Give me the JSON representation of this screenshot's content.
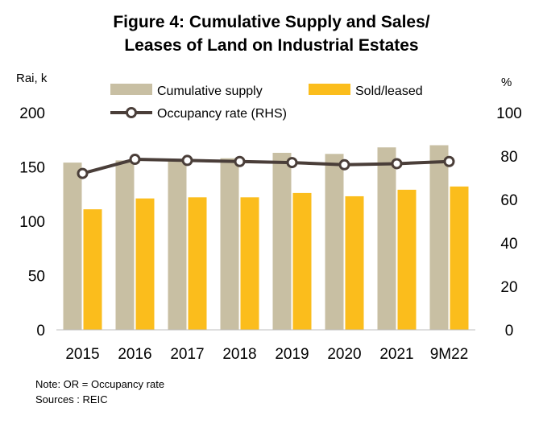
{
  "chart_data": {
    "type": "bar",
    "title_lines": [
      "Figure 4: Cumulative Supply and Sales/",
      "Leases of Land on Industrial Estates"
    ],
    "y_left_unit": "Rai, k",
    "y_right_unit": "%",
    "categories": [
      "2015",
      "2016",
      "2017",
      "2018",
      "2019",
      "2020",
      "2021",
      "9M22"
    ],
    "series": [
      {
        "name": "Cumulative supply",
        "type": "bar",
        "axis": "left",
        "color": "#c8bfa3",
        "values": [
          154,
          156,
          157,
          158,
          163,
          162,
          168,
          170
        ]
      },
      {
        "name": "Sold/leased",
        "type": "bar",
        "axis": "left",
        "color": "#fbbd1c",
        "values": [
          111,
          121,
          122,
          122,
          126,
          123,
          129,
          132
        ]
      },
      {
        "name": "Occupancy rate (RHS)",
        "type": "line",
        "axis": "right",
        "color": "#4a3e39",
        "values": [
          72,
          78.5,
          78,
          77.5,
          77,
          76,
          76.5,
          77.5
        ]
      }
    ],
    "y_left": {
      "min": 0,
      "max": 200,
      "ticks": [
        "0",
        "50",
        "100",
        "150",
        "200"
      ]
    },
    "y_right": {
      "min": 0,
      "max": 100,
      "ticks": [
        "0",
        "20",
        "40",
        "60",
        "80",
        "100"
      ]
    },
    "grid": false,
    "legend_position": "top"
  },
  "notes": [
    "Note: OR = Occupancy rate",
    "Sources : REIC"
  ]
}
